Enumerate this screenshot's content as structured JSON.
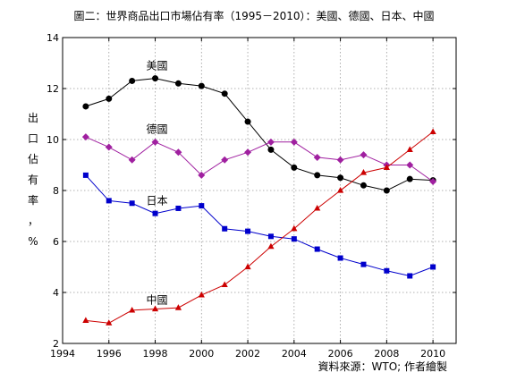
{
  "chart_data": {
    "type": "line",
    "title": "圖二：世界商品出口市場佔有率（1995－2010）：美國、德國、日本、中國",
    "ylabel": [
      "出",
      "口",
      "佔",
      "有",
      "率",
      "，",
      "%"
    ],
    "xlabel": "",
    "xlim": [
      1994,
      2011
    ],
    "ylim": [
      2,
      14
    ],
    "xticks": [
      "1994",
      "1996",
      "1998",
      "2000",
      "2002",
      "2004",
      "2006",
      "2008",
      "2010"
    ],
    "yticks": [
      "2",
      "4",
      "6",
      "8",
      "10",
      "12",
      "14"
    ],
    "grid": true,
    "legend": "none",
    "x": [
      1995,
      1996,
      1997,
      1998,
      1999,
      2000,
      2001,
      2002,
      2003,
      2004,
      2005,
      2006,
      2007,
      2008,
      2009,
      2010
    ],
    "series": [
      {
        "name": "美國",
        "color": "#000000",
        "marker": "circle",
        "label_x": 1998,
        "label_y": 12.9,
        "values": [
          11.3,
          11.6,
          12.3,
          12.4,
          12.2,
          12.1,
          11.8,
          10.7,
          9.6,
          8.9,
          8.6,
          8.5,
          8.2,
          8.0,
          8.45,
          8.4
        ]
      },
      {
        "name": "德國",
        "color": "#a020a0",
        "marker": "diamond",
        "label_x": 1998,
        "label_y": 10.4,
        "values": [
          10.1,
          9.7,
          9.2,
          9.9,
          9.5,
          8.6,
          9.2,
          9.5,
          9.9,
          9.9,
          9.3,
          9.2,
          9.4,
          9.0,
          9.0,
          8.35
        ]
      },
      {
        "name": "日本",
        "color": "#0000cc",
        "marker": "square",
        "label_x": 1998,
        "label_y": 7.6,
        "values": [
          8.6,
          7.6,
          7.5,
          7.1,
          7.3,
          7.4,
          6.5,
          6.4,
          6.2,
          6.1,
          5.7,
          5.35,
          5.1,
          4.85,
          4.65,
          5.0
        ]
      },
      {
        "name": "中國",
        "color": "#cc0000",
        "marker": "triangle",
        "label_x": 1998,
        "label_y": 3.7,
        "values": [
          2.9,
          2.8,
          3.3,
          3.35,
          3.4,
          3.9,
          4.3,
          5.0,
          5.8,
          6.5,
          7.3,
          8.0,
          8.7,
          8.9,
          9.6,
          10.3
        ]
      }
    ],
    "source": "資料來源：WTO; 作者繪製"
  }
}
